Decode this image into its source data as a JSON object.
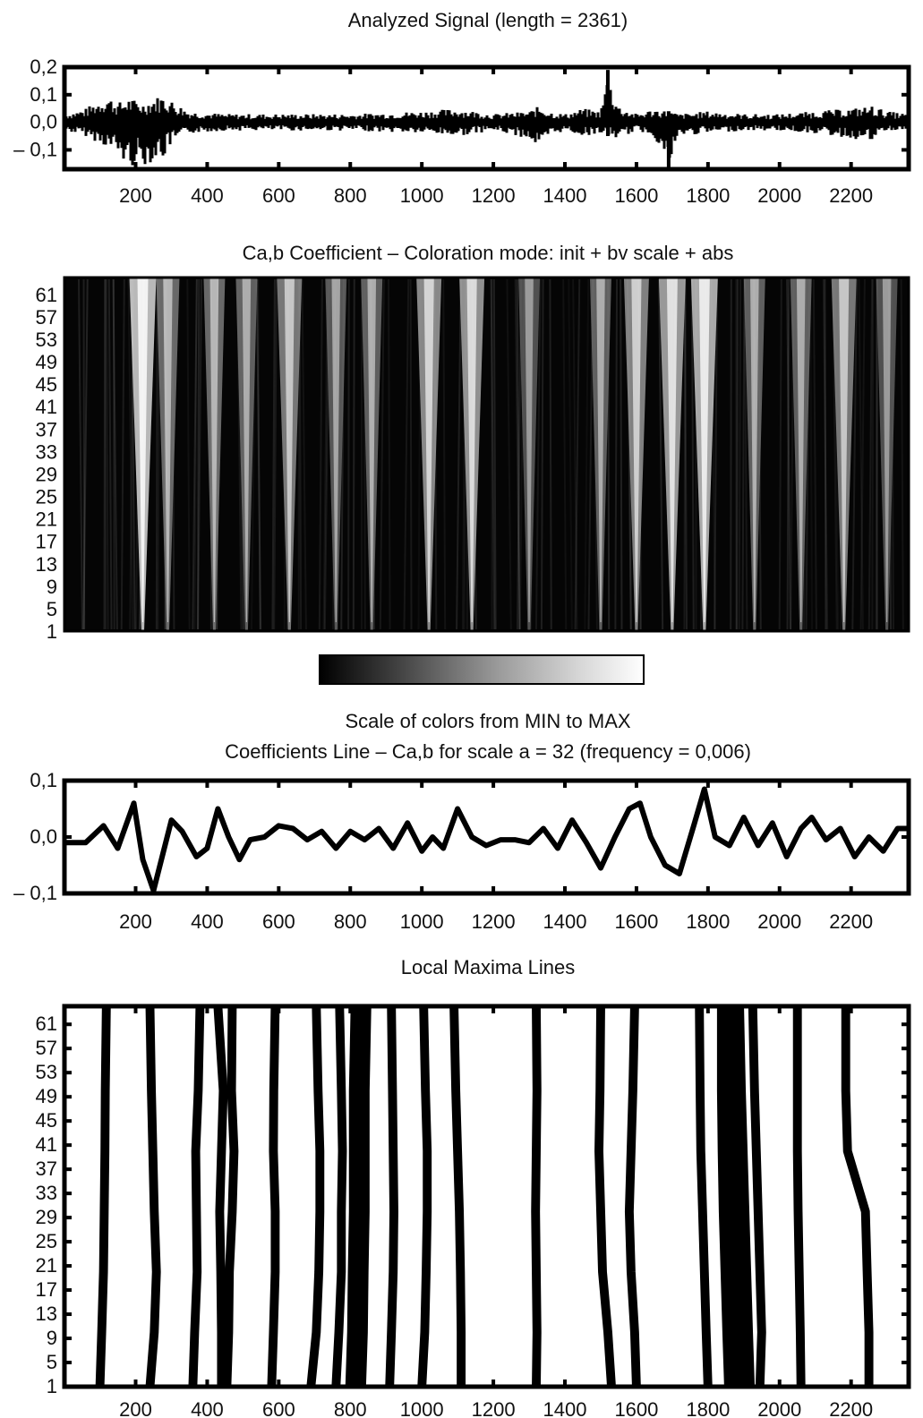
{
  "chart_data": [
    {
      "id": "signal",
      "type": "line",
      "title": "Analyzed Signal (length = 2361)",
      "xlabel": "",
      "ylabel": "",
      "length": 2361,
      "xlim": [
        1,
        2361
      ],
      "ylim": [
        -0.17,
        0.2
      ],
      "x_ticks": [
        200,
        400,
        600,
        800,
        1000,
        1200,
        1400,
        1600,
        1800,
        2000,
        2200
      ],
      "x_tick_labels": [
        "200",
        "400",
        "600",
        "800",
        "1000",
        "1200",
        "1400",
        "1600",
        "1800",
        "2000",
        "2200"
      ],
      "y_ticks": [
        0.2,
        0.1,
        0.0,
        -0.1
      ],
      "y_tick_labels": [
        "0,2",
        "0,1",
        "0,0",
        "– 0,1"
      ],
      "envelope": {
        "x": [
          1,
          60,
          120,
          150,
          180,
          200,
          220,
          250,
          280,
          300,
          350,
          450,
          600,
          800,
          1000,
          1100,
          1200,
          1300,
          1330,
          1360,
          1400,
          1450,
          1500,
          1520,
          1550,
          1600,
          1650,
          1690,
          1720,
          1800,
          1900,
          2000,
          2100,
          2200,
          2260,
          2300,
          2361
        ],
        "upper": [
          0.03,
          0.05,
          0.1,
          0.07,
          0.09,
          0.08,
          0.07,
          0.09,
          0.1,
          0.08,
          0.04,
          0.03,
          0.03,
          0.03,
          0.04,
          0.05,
          0.03,
          0.04,
          0.06,
          0.04,
          0.03,
          0.05,
          0.04,
          0.18,
          0.06,
          0.03,
          0.05,
          0.04,
          0.03,
          0.04,
          0.03,
          0.03,
          0.04,
          0.05,
          0.06,
          0.04,
          0.03
        ],
        "lower": [
          -0.03,
          -0.05,
          -0.09,
          -0.12,
          -0.17,
          -0.15,
          -0.16,
          -0.14,
          -0.13,
          -0.08,
          -0.04,
          -0.03,
          -0.03,
          -0.03,
          -0.04,
          -0.05,
          -0.03,
          -0.06,
          -0.1,
          -0.05,
          -0.03,
          -0.05,
          -0.04,
          -0.05,
          -0.06,
          -0.03,
          -0.05,
          -0.17,
          -0.05,
          -0.04,
          -0.03,
          -0.03,
          -0.04,
          -0.06,
          -0.07,
          -0.03,
          -0.03
        ]
      }
    },
    {
      "id": "scalogram",
      "type": "heatmap",
      "title": "Ca,b Coefficient – Coloration mode: init + bv scale + abs",
      "xlabel": "",
      "ylabel": "",
      "xlim": [
        1,
        2361
      ],
      "ylim": [
        1,
        64
      ],
      "y_ticks": [
        1,
        5,
        9,
        13,
        17,
        21,
        25,
        29,
        33,
        37,
        41,
        45,
        49,
        53,
        57,
        61
      ],
      "y_tick_labels": [
        "1",
        "5",
        "9",
        "13",
        "17",
        "21",
        "25",
        "29",
        "33",
        "37",
        "41",
        "45",
        "49",
        "53",
        "57",
        "61"
      ],
      "colormap": [
        "#000000",
        "#ffffff"
      ],
      "bright_ridges": [
        {
          "x": 220,
          "intensity": 0.95,
          "width": 45
        },
        {
          "x": 290,
          "intensity": 0.45,
          "width": 35
        },
        {
          "x": 420,
          "intensity": 0.45,
          "width": 30
        },
        {
          "x": 510,
          "intensity": 0.4,
          "width": 30
        },
        {
          "x": 630,
          "intensity": 0.55,
          "width": 40
        },
        {
          "x": 760,
          "intensity": 0.35,
          "width": 30
        },
        {
          "x": 860,
          "intensity": 0.4,
          "width": 30
        },
        {
          "x": 1020,
          "intensity": 0.65,
          "width": 40
        },
        {
          "x": 1140,
          "intensity": 0.7,
          "width": 40
        },
        {
          "x": 1300,
          "intensity": 0.3,
          "width": 30
        },
        {
          "x": 1500,
          "intensity": 0.4,
          "width": 30
        },
        {
          "x": 1600,
          "intensity": 0.6,
          "width": 40
        },
        {
          "x": 1700,
          "intensity": 0.75,
          "width": 45
        },
        {
          "x": 1790,
          "intensity": 0.85,
          "width": 45
        },
        {
          "x": 1930,
          "intensity": 0.4,
          "width": 30
        },
        {
          "x": 2060,
          "intensity": 0.4,
          "width": 30
        },
        {
          "x": 2180,
          "intensity": 0.55,
          "width": 40
        },
        {
          "x": 2300,
          "intensity": 0.3,
          "width": 30
        }
      ]
    },
    {
      "id": "colorbar",
      "type": "heatmap",
      "caption": "Scale of colors from MIN to MAX",
      "range": [
        "MIN",
        "MAX"
      ],
      "colormap": [
        "#000000",
        "#ffffff"
      ]
    },
    {
      "id": "coef-line",
      "type": "line",
      "title": "Coefficients Line – Ca,b for scale a = 32 (frequency = 0,006)",
      "xlabel": "",
      "ylabel": "",
      "xlim": [
        1,
        2361
      ],
      "ylim": [
        -0.1,
        0.1
      ],
      "x_ticks": [
        200,
        400,
        600,
        800,
        1000,
        1200,
        1400,
        1600,
        1800,
        2000,
        2200
      ],
      "x_tick_labels": [
        "200",
        "400",
        "600",
        "800",
        "1000",
        "1200",
        "1400",
        "1600",
        "1800",
        "2000",
        "2200"
      ],
      "y_ticks": [
        0.1,
        0.0,
        -0.1
      ],
      "y_tick_labels": [
        "0,1",
        "0,0",
        "– 0,1"
      ],
      "x": [
        1,
        60,
        110,
        150,
        195,
        220,
        250,
        280,
        300,
        330,
        370,
        400,
        430,
        460,
        490,
        520,
        560,
        600,
        640,
        680,
        720,
        760,
        800,
        840,
        880,
        920,
        960,
        1000,
        1030,
        1060,
        1100,
        1140,
        1180,
        1220,
        1260,
        1300,
        1340,
        1380,
        1420,
        1460,
        1500,
        1540,
        1580,
        1610,
        1640,
        1680,
        1720,
        1760,
        1790,
        1820,
        1860,
        1900,
        1940,
        1980,
        2020,
        2060,
        2090,
        2130,
        2170,
        2210,
        2250,
        2290,
        2330,
        2361
      ],
      "y": [
        -0.01,
        -0.01,
        0.02,
        -0.02,
        0.06,
        -0.04,
        -0.095,
        -0.02,
        0.03,
        0.01,
        -0.035,
        -0.02,
        0.05,
        0.0,
        -0.04,
        -0.005,
        0.0,
        0.02,
        0.015,
        -0.005,
        0.01,
        -0.02,
        0.01,
        -0.005,
        0.015,
        -0.02,
        0.025,
        -0.025,
        0.0,
        -0.02,
        0.05,
        0.0,
        -0.015,
        -0.005,
        -0.005,
        -0.01,
        0.015,
        -0.02,
        0.03,
        -0.01,
        -0.055,
        0.0,
        0.05,
        0.06,
        0.0,
        -0.05,
        -0.065,
        0.02,
        0.085,
        0.0,
        -0.015,
        0.035,
        -0.015,
        0.025,
        -0.035,
        0.015,
        0.035,
        -0.005,
        0.015,
        -0.035,
        0.0,
        -0.025,
        0.015,
        0.015
      ]
    },
    {
      "id": "maxima",
      "type": "line",
      "title": "Local Maxima Lines",
      "xlabel": "",
      "ylabel": "",
      "xlim": [
        1,
        2361
      ],
      "ylim": [
        1,
        64
      ],
      "x_ticks": [
        200,
        400,
        600,
        800,
        1000,
        1200,
        1400,
        1600,
        1800,
        2000,
        2200
      ],
      "x_tick_labels": [
        "200",
        "400",
        "600",
        "800",
        "1000",
        "1200",
        "1400",
        "1600",
        "1800",
        "2000",
        "2200"
      ],
      "y_ticks": [
        1,
        5,
        9,
        13,
        17,
        21,
        25,
        29,
        33,
        37,
        41,
        45,
        49,
        53,
        57,
        61
      ],
      "y_tick_labels": [
        "1",
        "5",
        "9",
        "13",
        "17",
        "21",
        "25",
        "29",
        "33",
        "37",
        "41",
        "45",
        "49",
        "53",
        "57",
        "61"
      ],
      "scale": [
        1,
        10,
        20,
        30,
        40,
        50,
        64
      ],
      "series": [
        {
          "x": [
            100,
            105,
            110,
            112,
            114,
            115,
            118
          ],
          "width": 3
        },
        {
          "x": [
            240,
            252,
            258,
            252,
            248,
            244,
            240
          ],
          "width": 3
        },
        {
          "x": [
            360,
            365,
            372,
            370,
            368,
            375,
            380
          ],
          "width": 3
        },
        {
          "x": [
            440,
            440,
            438,
            435,
            440,
            445,
            430
          ],
          "width": 3
        },
        {
          "x": [
            455,
            460,
            462,
            470,
            475,
            468,
            470
          ],
          "width": 3
        },
        {
          "x": [
            580,
            585,
            590,
            590,
            585,
            586,
            590
          ],
          "width": 3
        },
        {
          "x": [
            690,
            705,
            712,
            715,
            715,
            710,
            705
          ],
          "width": 3
        },
        {
          "x": [
            760,
            768,
            775,
            775,
            778,
            775,
            770
          ],
          "width": 3
        },
        {
          "x": [
            815,
            820,
            822,
            825,
            825,
            825,
            830
          ],
          "width": 7
        },
        {
          "x": [
            910,
            915,
            920,
            922,
            920,
            918,
            915
          ],
          "width": 3
        },
        {
          "x": [
            1000,
            1008,
            1012,
            1015,
            1015,
            1010,
            1005
          ],
          "width": 3
        },
        {
          "x": [
            1110,
            1110,
            1108,
            1105,
            1100,
            1095,
            1090
          ],
          "width": 3
        },
        {
          "x": [
            1320,
            1322,
            1320,
            1318,
            1320,
            1322,
            1320
          ],
          "width": 3
        },
        {
          "x": [
            1530,
            1520,
            1505,
            1500,
            1495,
            1498,
            1500
          ],
          "width": 3
        },
        {
          "x": [
            1600,
            1595,
            1585,
            1580,
            1585,
            1590,
            1595
          ],
          "width": 3
        },
        {
          "x": [
            1800,
            1795,
            1790,
            1785,
            1780,
            1778,
            1776
          ],
          "width": 3
        },
        {
          "x": [
            1870,
            1865,
            1860,
            1855,
            1852,
            1850,
            1850
          ],
          "width": 6
        },
        {
          "x": [
            1910,
            1905,
            1900,
            1895,
            1890,
            1885,
            1880
          ],
          "width": 5
        },
        {
          "x": [
            1945,
            1950,
            1945,
            1940,
            1935,
            1930,
            1925
          ],
          "width": 3
        },
        {
          "x": [
            2060,
            2058,
            2055,
            2052,
            2050,
            2050,
            2050
          ],
          "width": 3
        },
        {
          "x": [
            2250,
            2250,
            2245,
            2240,
            2190,
            2185,
            2185
          ],
          "width": 3
        }
      ]
    }
  ]
}
